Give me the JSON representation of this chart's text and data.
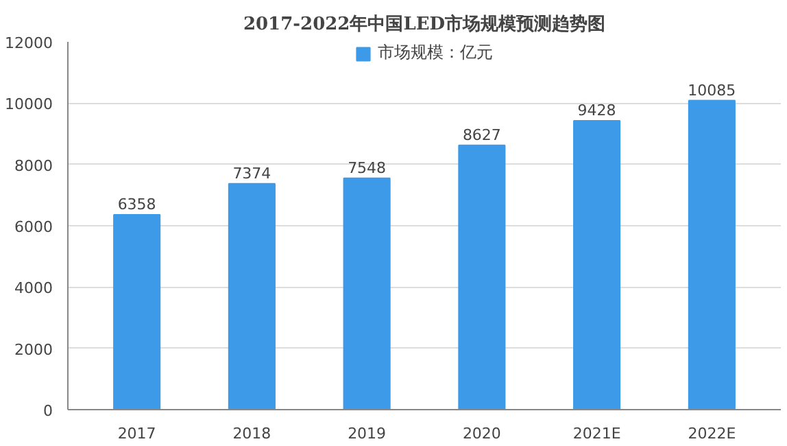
{
  "chart_data": {
    "type": "bar",
    "title": "2017-2022年中国LED市场规模预测趋势图",
    "categories": [
      "2017",
      "2018",
      "2019",
      "2020",
      "2021E",
      "2022E"
    ],
    "series": [
      {
        "name": "市场规模：亿元",
        "color": "#3d9ae8",
        "values": [
          6358,
          7374,
          7548,
          8627,
          9428,
          10085
        ]
      }
    ],
    "ylim": [
      0,
      12000
    ],
    "yticks": [
      0,
      2000,
      4000,
      6000,
      8000,
      10000,
      12000
    ],
    "grid": "y",
    "legend": "top",
    "data_labels": true
  }
}
